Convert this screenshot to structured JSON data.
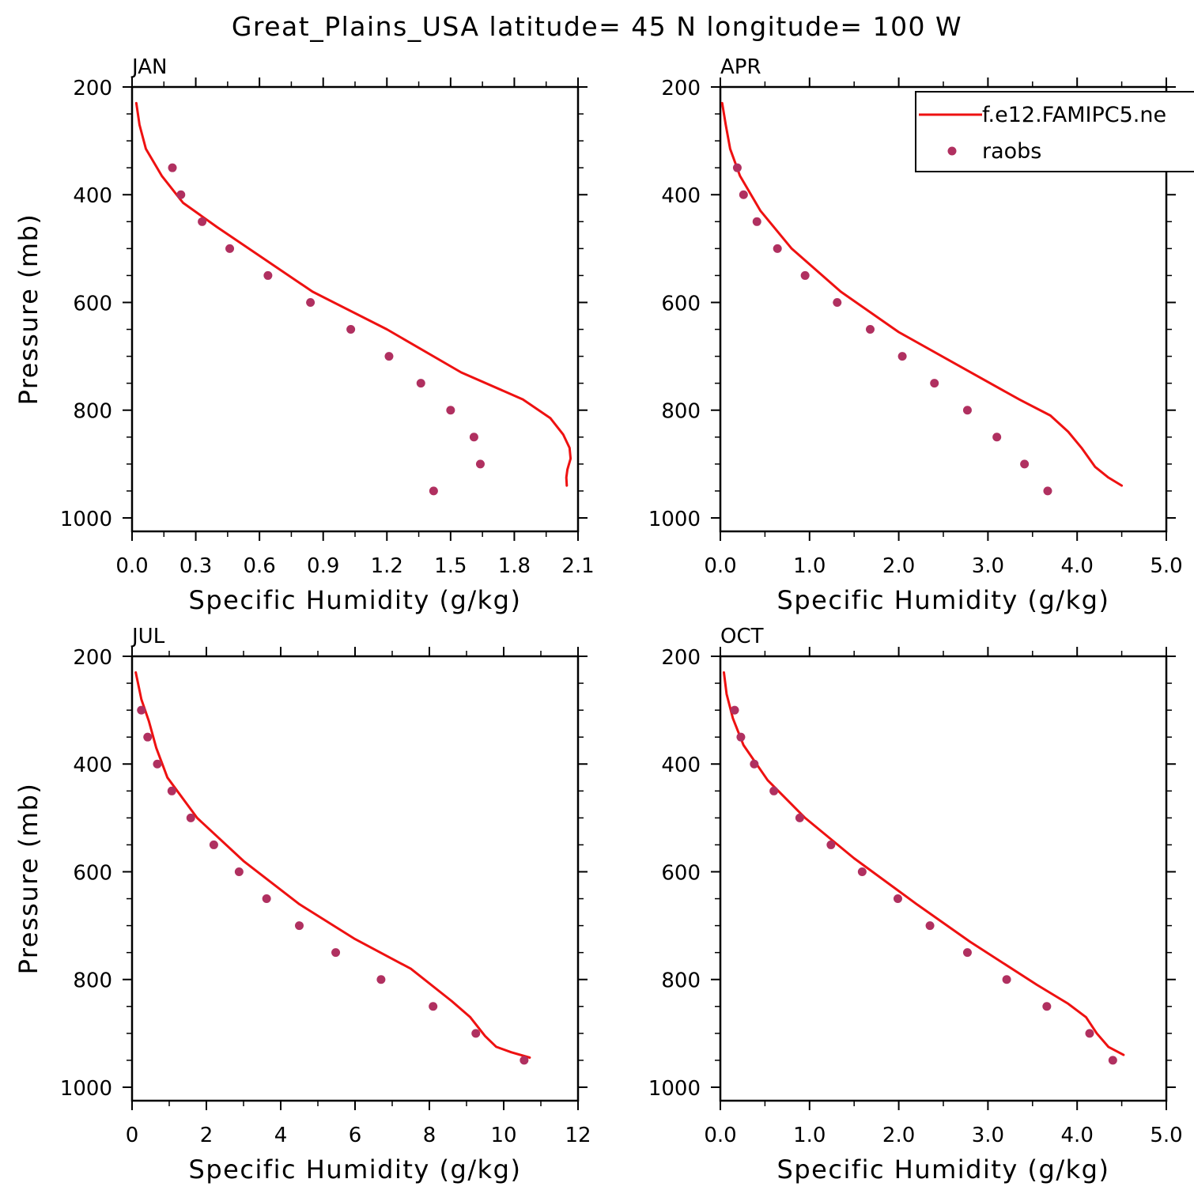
{
  "title": "Great_Plains_USA  latitude= 45 N longitude= 100 W",
  "legend": {
    "entries": [
      {
        "label": "f.e12.FAMIPC5.ne",
        "kind": "line",
        "color": "#ee1111"
      },
      {
        "label": "raobs",
        "kind": "marker",
        "color": "#b03060"
      }
    ]
  },
  "colors": {
    "model": "#ee1111",
    "obs": "#b03060",
    "axes": "#000000"
  },
  "chart_data": [
    {
      "type": "line",
      "panel": "JAN",
      "xlabel": "Specific Humidity (g/kg)",
      "ylabel": "Pressure (mb)",
      "xlim": [
        0.0,
        2.1
      ],
      "ylim": [
        200,
        1025
      ],
      "y_inverted": true,
      "xticks": [
        0.0,
        0.3,
        0.6,
        0.9,
        1.2,
        1.5,
        1.8,
        2.1
      ],
      "xtick_labels": [
        "0.0",
        "0.3",
        "0.6",
        "0.9",
        "1.2",
        "1.5",
        "1.8",
        "2.1"
      ],
      "yticks": [
        200,
        400,
        600,
        800,
        1000
      ],
      "ytick_labels": [
        "200",
        "400",
        "600",
        "800",
        "1000"
      ],
      "series": [
        {
          "name": "f.e12.FAMIPC5.ne",
          "style": "line",
          "x": [
            0.02,
            0.035,
            0.065,
            0.14,
            0.24,
            0.4,
            0.55,
            0.85,
            1.2,
            1.55,
            1.84,
            1.97,
            2.03,
            2.06,
            2.065,
            2.05,
            2.045,
            2.047
          ],
          "y": [
            230,
            270,
            315,
            365,
            415,
            460,
            500,
            580,
            650,
            730,
            780,
            815,
            845,
            870,
            890,
            910,
            925,
            940
          ]
        },
        {
          "name": "raobs",
          "style": "marker",
          "x": [
            0.19,
            0.23,
            0.33,
            0.46,
            0.64,
            0.84,
            1.03,
            1.21,
            1.36,
            1.5,
            1.61,
            1.64,
            1.42
          ],
          "y": [
            350,
            400,
            450,
            500,
            550,
            600,
            650,
            700,
            750,
            800,
            850,
            900,
            950
          ]
        }
      ]
    },
    {
      "type": "line",
      "panel": "APR",
      "xlabel": "Specific Humidity (g/kg)",
      "ylabel": "",
      "xlim": [
        0.0,
        5.0
      ],
      "ylim": [
        200,
        1025
      ],
      "y_inverted": true,
      "xticks": [
        0.0,
        1.0,
        2.0,
        3.0,
        4.0,
        5.0
      ],
      "xtick_labels": [
        "0.0",
        "1.0",
        "2.0",
        "3.0",
        "4.0",
        "5.0"
      ],
      "yticks": [
        200,
        400,
        600,
        800,
        1000
      ],
      "ytick_labels": [
        "200",
        "400",
        "600",
        "800",
        "1000"
      ],
      "series": [
        {
          "name": "f.e12.FAMIPC5.ne",
          "style": "line",
          "x": [
            0.02,
            0.06,
            0.11,
            0.22,
            0.45,
            0.8,
            1.35,
            2.0,
            2.7,
            3.35,
            3.7,
            3.9,
            4.05,
            4.2,
            4.35,
            4.5
          ],
          "y": [
            230,
            270,
            315,
            365,
            430,
            500,
            580,
            655,
            720,
            780,
            810,
            840,
            870,
            905,
            925,
            940
          ]
        },
        {
          "name": "raobs",
          "style": "marker",
          "x": [
            0.19,
            0.26,
            0.41,
            0.64,
            0.95,
            1.31,
            1.68,
            2.04,
            2.4,
            2.77,
            3.1,
            3.41,
            3.67
          ],
          "y": [
            350,
            400,
            450,
            500,
            550,
            600,
            650,
            700,
            750,
            800,
            850,
            900,
            950
          ]
        }
      ]
    },
    {
      "type": "line",
      "panel": "JUL",
      "xlabel": "Specific Humidity (g/kg)",
      "ylabel": "Pressure (mb)",
      "xlim": [
        0,
        12
      ],
      "ylim": [
        200,
        1025
      ],
      "y_inverted": true,
      "xticks": [
        0,
        2,
        4,
        6,
        8,
        10,
        12
      ],
      "xtick_labels": [
        "0",
        "2",
        "4",
        "6",
        "8",
        "10",
        "12"
      ],
      "yticks": [
        200,
        400,
        600,
        800,
        1000
      ],
      "ytick_labels": [
        "200",
        "400",
        "600",
        "800",
        "1000"
      ],
      "series": [
        {
          "name": "f.e12.FAMIPC5.ne",
          "style": "line",
          "x": [
            0.1,
            0.25,
            0.45,
            0.65,
            0.95,
            1.75,
            3.0,
            4.5,
            6.0,
            7.5,
            8.6,
            9.1,
            9.5,
            9.8,
            10.2,
            10.7
          ],
          "y": [
            230,
            280,
            320,
            370,
            425,
            500,
            580,
            660,
            725,
            780,
            840,
            870,
            905,
            925,
            935,
            945
          ]
        },
        {
          "name": "raobs",
          "style": "marker",
          "x": [
            0.25,
            0.42,
            0.68,
            1.07,
            1.58,
            2.2,
            2.88,
            3.62,
            4.5,
            5.48,
            6.7,
            8.1,
            9.25,
            10.55
          ],
          "y": [
            300,
            350,
            400,
            450,
            500,
            550,
            600,
            650,
            700,
            750,
            800,
            850,
            900,
            950
          ]
        }
      ]
    },
    {
      "type": "line",
      "panel": "OCT",
      "xlabel": "Specific Humidity (g/kg)",
      "ylabel": "",
      "xlim": [
        0.0,
        5.0
      ],
      "ylim": [
        200,
        1025
      ],
      "y_inverted": true,
      "xticks": [
        0.0,
        1.0,
        2.0,
        3.0,
        4.0,
        5.0
      ],
      "xtick_labels": [
        "0.0",
        "1.0",
        "2.0",
        "3.0",
        "4.0",
        "5.0"
      ],
      "yticks": [
        200,
        400,
        600,
        800,
        1000
      ],
      "ytick_labels": [
        "200",
        "400",
        "600",
        "800",
        "1000"
      ],
      "series": [
        {
          "name": "f.e12.FAMIPC5.ne",
          "style": "line",
          "x": [
            0.04,
            0.07,
            0.14,
            0.26,
            0.53,
            0.95,
            1.5,
            2.2,
            2.8,
            3.55,
            3.9,
            4.1,
            4.22,
            4.35,
            4.52
          ],
          "y": [
            230,
            270,
            315,
            365,
            430,
            500,
            575,
            660,
            730,
            810,
            845,
            870,
            900,
            925,
            940
          ]
        },
        {
          "name": "raobs",
          "style": "marker",
          "x": [
            0.16,
            0.23,
            0.38,
            0.6,
            0.89,
            1.24,
            1.59,
            1.99,
            2.35,
            2.77,
            3.21,
            3.66,
            4.14,
            4.4
          ],
          "y": [
            300,
            350,
            400,
            450,
            500,
            550,
            600,
            650,
            700,
            750,
            800,
            850,
            900,
            950
          ]
        }
      ]
    }
  ]
}
